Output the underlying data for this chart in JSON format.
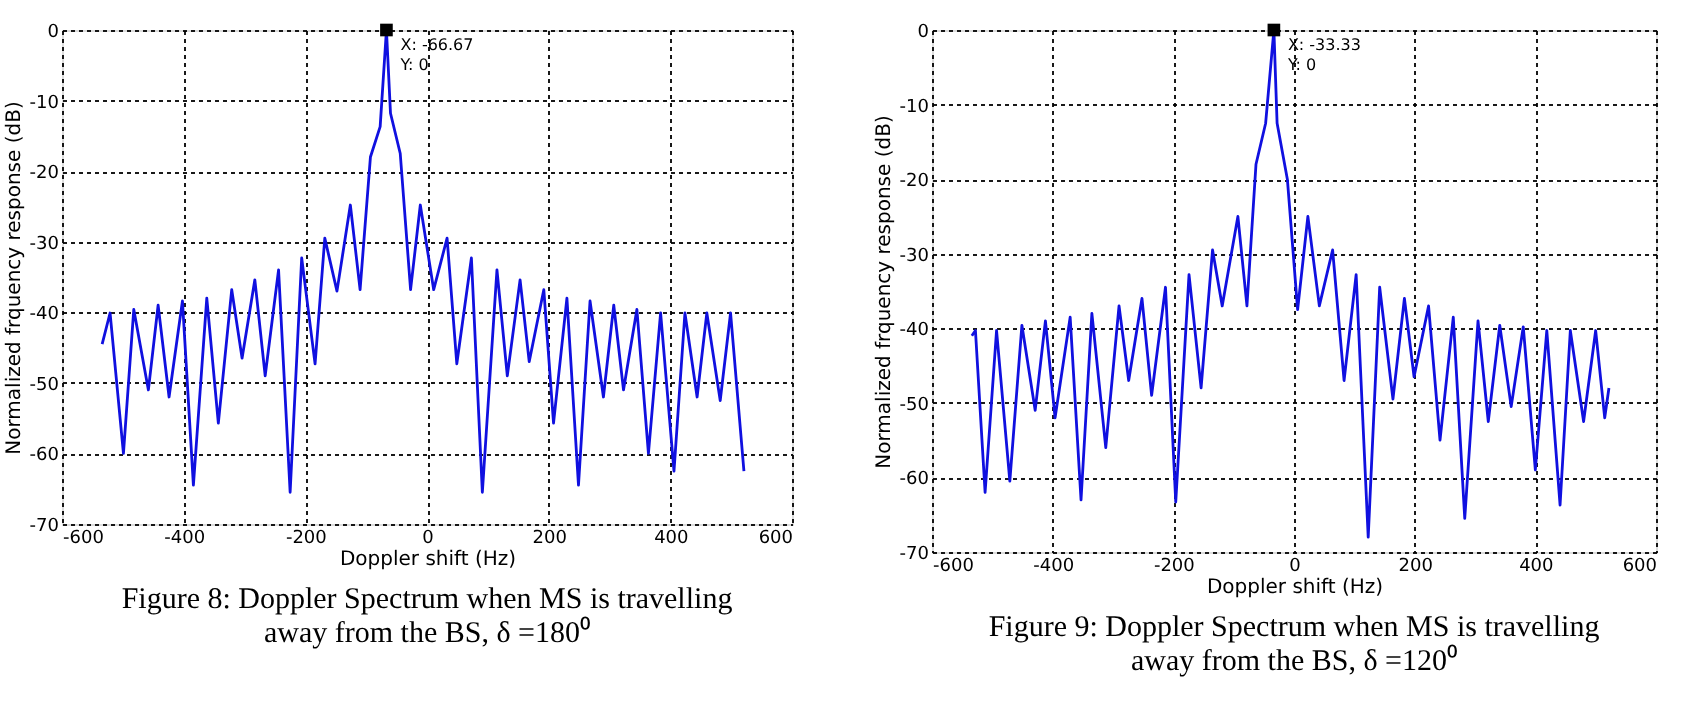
{
  "chart_data": [
    {
      "type": "line",
      "title": "Figure 8: Doppler Spectrum when MS is travelling\naway from the BS, δ =180⁰",
      "xlabel": "Doppler shift (Hz)",
      "ylabel": "Normalized frquency response (dB)",
      "xlim": [
        -600,
        600
      ],
      "xticks": [
        -600,
        -400,
        -200,
        0,
        200,
        400,
        600
      ],
      "ylim": [
        -70,
        0
      ],
      "yticks": [
        -70,
        -60,
        -50,
        -40,
        -30,
        -20,
        -10,
        0
      ],
      "grid": true,
      "annotations": [
        {
          "text": "X: -66.67\nY: 0",
          "x": -66.67,
          "y": 0
        }
      ],
      "series": [
        {
          "color": "#1010e0",
          "x": [
            -534,
            -521,
            -499,
            -482,
            -458,
            -442,
            -424,
            -402,
            -384,
            -362,
            -343,
            -321,
            -304,
            -283,
            -266,
            -244,
            -225,
            -206,
            -184,
            -168,
            -148,
            -126,
            -110,
            -93,
            -77,
            -66.67,
            -60,
            -44,
            -27,
            -11,
            11,
            33,
            49,
            73,
            91,
            115,
            132,
            153,
            168,
            192,
            208,
            230,
            249,
            268,
            290,
            307,
            323,
            345,
            364,
            384,
            406,
            424,
            444,
            460,
            482,
            499,
            521
          ],
          "values": [
            -44.5,
            -40.1,
            -60,
            -39.6,
            -51,
            -39,
            -52,
            -38.4,
            -64.5,
            -38,
            -55.7,
            -36.8,
            -46.5,
            -35.4,
            -49,
            -34,
            -65.5,
            -32.3,
            -47.3,
            -29.5,
            -37,
            -24.8,
            -36.8,
            -18,
            -13.7,
            0,
            -11.8,
            -17.5,
            -36.8,
            -24.8,
            -36.8,
            -29.5,
            -47.3,
            -32.3,
            -65.5,
            -34,
            -49,
            -35.4,
            -47,
            -36.8,
            -55.7,
            -38,
            -64.5,
            -38.4,
            -52,
            -39,
            -51,
            -39.6,
            -60,
            -40.1,
            -62.5,
            -40.1,
            -52,
            -40.1,
            -52.5,
            -40.1,
            -62.5
          ]
        }
      ]
    },
    {
      "type": "line",
      "title": "Figure 9: Doppler Spectrum when MS is travelling\naway from the BS, δ =120⁰",
      "xlabel": "Doppler shift (Hz)",
      "ylabel": "Normalized frquency response (dB)",
      "xlim": [
        -600,
        600
      ],
      "xticks": [
        -600,
        -400,
        -200,
        0,
        200,
        400,
        600
      ],
      "ylim": [
        -70,
        0
      ],
      "yticks": [
        -70,
        -60,
        -50,
        -40,
        -30,
        -20,
        -10,
        0
      ],
      "grid": true,
      "annotations": [
        {
          "text": "X: -33.33\nY: 0",
          "x": -33.33,
          "y": 0
        }
      ],
      "series": [
        {
          "color": "#1010e0",
          "x": [
            -534,
            -528,
            -512,
            -493,
            -471,
            -451,
            -429,
            -412,
            -396,
            -371,
            -353,
            -335,
            -312,
            -290,
            -274,
            -252,
            -236,
            -213,
            -196,
            -174,
            -154,
            -135,
            -119,
            -93,
            -78,
            -63,
            -47,
            -33.33,
            -28,
            -11,
            6,
            23,
            42,
            64,
            83,
            103,
            123,
            142,
            164,
            183,
            199,
            223,
            242,
            264,
            283,
            305,
            322,
            341,
            360,
            380,
            400,
            419,
            441,
            458,
            480,
            500,
            515,
            522
          ],
          "values": [
            -41,
            -40.3,
            -62,
            -40.3,
            -60.5,
            -39.6,
            -51,
            -39,
            -52,
            -38.5,
            -63,
            -38,
            -56,
            -37,
            -47,
            -36,
            -49,
            -34.5,
            -63.3,
            -32.8,
            -48,
            -29.5,
            -37,
            -25,
            -37,
            -18,
            -12.5,
            0,
            -12.5,
            -20,
            -37.5,
            -25,
            -37,
            -29.5,
            -47,
            -32.8,
            -68,
            -34.5,
            -49.5,
            -36,
            -46.5,
            -37,
            -55,
            -38.5,
            -65.5,
            -39,
            -52.5,
            -39.6,
            -50.5,
            -39.8,
            -59,
            -40.3,
            -63.7,
            -40.3,
            -52.5,
            -40.3,
            -52,
            -48
          ]
        }
      ]
    }
  ]
}
